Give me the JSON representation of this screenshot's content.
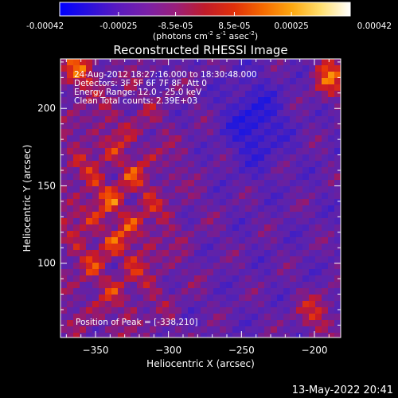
{
  "colorbar": {
    "tick_labels": [
      "-0.00042",
      "-0.00025",
      "-8.5e-05",
      "8.5e-05",
      "0.00025",
      "0.00042"
    ],
    "tick_values": [
      -0.00042,
      -0.00025,
      -8.5e-05,
      8.5e-05,
      0.00025,
      0.00042
    ],
    "range": [
      -0.00042,
      0.00042
    ],
    "unit_main": "(photons cm",
    "unit_sup1": "-2",
    "unit_mid": " s",
    "unit_sup2": "-1",
    "unit_end": " asec",
    "unit_sup3": "-2",
    "unit_close": ")",
    "colors": [
      "#0000ff",
      "#2a10dd",
      "#5a1abf",
      "#7a20a8",
      "#9a1f7a",
      "#c01c2a",
      "#e0300a",
      "#f56a00",
      "#fda810",
      "#ffe070",
      "#ffffff"
    ]
  },
  "chart_data": {
    "type": "heatmap",
    "title": "Reconstructed RHESSI Image",
    "xlabel": "Heliocentric X (arcsec)",
    "ylabel": "Heliocentric Y (arcsec)",
    "xlim": [
      -374,
      -182
    ],
    "ylim": [
      52,
      232
    ],
    "x_ticks": [
      -350,
      -300,
      -250,
      -200
    ],
    "y_ticks": [
      100,
      150,
      200
    ],
    "x_tick_labels": [
      "−350",
      "−300",
      "−250",
      "−200"
    ],
    "y_tick_labels": [
      "100",
      "150",
      "200"
    ],
    "annotations": [
      "24-Aug-2012 18:27:16.000 to 18:30:48.000",
      "Detectors: 3F 5F 6F 7F 8F, Att 0",
      "Energy Range: 12.0 - 25.0 keV",
      "Clean     Total counts: 2.39E+03"
    ],
    "peak_label": "Position of Peak = [-338,210]",
    "peak": [
      -338,
      210
    ],
    "grid": false
  },
  "footer": {
    "date": "13-May-2022 20:41"
  }
}
